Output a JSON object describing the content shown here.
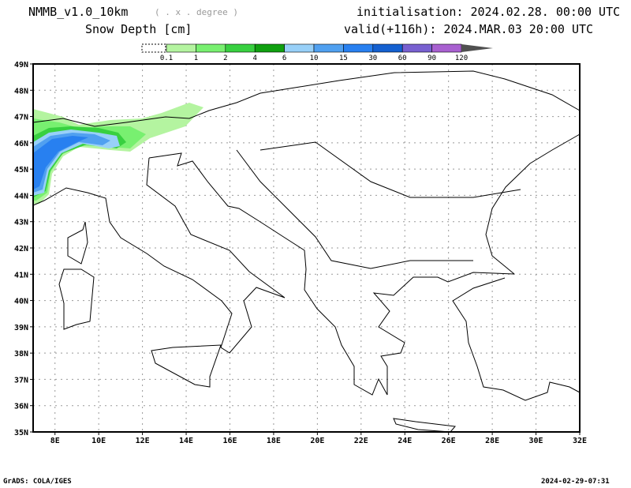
{
  "header": {
    "model": "NMMB_v1.0_10km",
    "projection": "( . x . degree )",
    "field": "Snow Depth [cm]",
    "init": "initialisation: 2024.02.28.  00:00 UTC",
    "valid": "valid(+116h): 2024.MAR.03 20:00 UTC"
  },
  "colorbar": {
    "labels": [
      "0.1",
      "1",
      "2",
      "4",
      "6",
      "10",
      "15",
      "30",
      "60",
      "90",
      "120"
    ],
    "colors": [
      "#b4f4a0",
      "#78f070",
      "#38d040",
      "#10a010",
      "#98d0f8",
      "#50a0f0",
      "#2880f0",
      "#1460d0",
      "#7860d0",
      "#a860d0"
    ],
    "overflow_color": "#505050"
  },
  "map": {
    "lat_labels": [
      "49N",
      "48N",
      "47N",
      "46N",
      "45N",
      "44N",
      "43N",
      "42N",
      "41N",
      "40N",
      "39N",
      "38N",
      "37N",
      "36N",
      "35N"
    ],
    "lon_labels": [
      "8E",
      "10E",
      "12E",
      "14E",
      "16E",
      "18E",
      "20E",
      "22E",
      "24E",
      "26E",
      "28E",
      "30E",
      "32E"
    ]
  },
  "footer": {
    "left": "GrADS: COLA/IGES",
    "right": "2024-02-29-07:31"
  }
}
